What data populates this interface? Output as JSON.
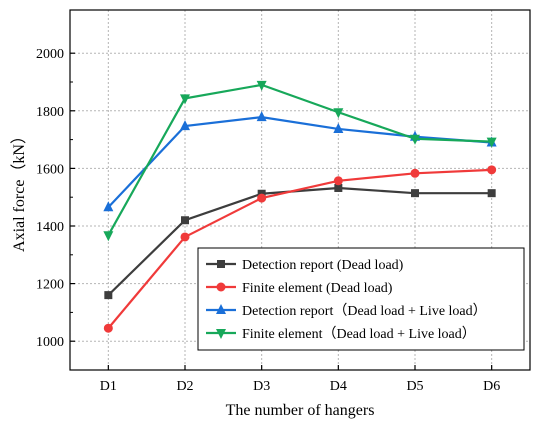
{
  "chart_data": {
    "type": "line",
    "categories": [
      "D1",
      "D2",
      "D3",
      "D4",
      "D5",
      "D6"
    ],
    "xlabel": "The number of hangers",
    "ylabel": "Axial force（kN）",
    "ylim": [
      900,
      2150
    ],
    "yticks": [
      1000,
      1200,
      1400,
      1600,
      1800,
      2000
    ],
    "grid": true,
    "legend_position": "bottom-right",
    "series": [
      {
        "name": "Detection report (Dead load)",
        "color": "#3d3d3d",
        "marker": "square",
        "values": [
          1160,
          1420,
          1512,
          1532,
          1514,
          1514
        ]
      },
      {
        "name": "Finite element (Dead load)",
        "color": "#f03a3a",
        "marker": "circle",
        "values": [
          1045,
          1362,
          1497,
          1557,
          1583,
          1595
        ]
      },
      {
        "name": "Detection report（Dead load + Live load）",
        "color": "#1a6fd8",
        "marker": "triangle-up",
        "values": [
          1465,
          1747,
          1778,
          1737,
          1710,
          1690
        ]
      },
      {
        "name": "Finite element（Dead load + Live load）",
        "color": "#17a85a",
        "marker": "triangle-down",
        "values": [
          1368,
          1843,
          1890,
          1795,
          1703,
          1693
        ]
      }
    ]
  }
}
